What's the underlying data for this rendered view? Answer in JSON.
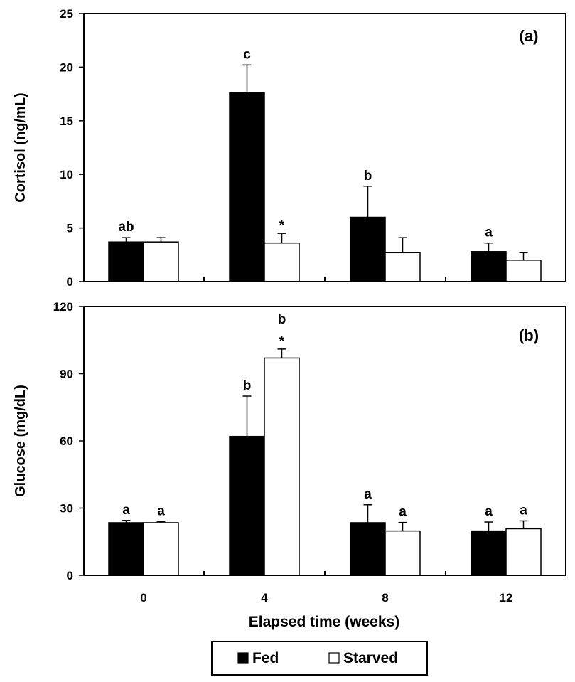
{
  "figure": {
    "xlabel": "Elapsed time (weeks)",
    "legend": {
      "position": "bottom-center",
      "items": [
        {
          "label": "Fed",
          "color": "#000000"
        },
        {
          "label": "Starved",
          "color": "#ffffff"
        }
      ]
    }
  },
  "chart_data": [
    {
      "type": "bar",
      "panel_label": "(a)",
      "categories": [
        "0",
        "4",
        "8",
        "12"
      ],
      "ylabel": "Cortisol (ng/mL)",
      "ylim": [
        0,
        25
      ],
      "yticks": [
        0,
        5,
        10,
        15,
        20,
        25
      ],
      "grid": false,
      "series": [
        {
          "name": "Fed",
          "color": "#000000",
          "values": [
            3.7,
            17.6,
            6.0,
            2.8
          ],
          "errors": [
            0.4,
            2.6,
            2.9,
            0.8
          ],
          "labels": [
            "ab",
            "c",
            "b",
            "a"
          ]
        },
        {
          "name": "Starved",
          "color": "#ffffff",
          "values": [
            3.7,
            3.6,
            2.7,
            2.0
          ],
          "errors": [
            0.4,
            0.9,
            1.4,
            0.7
          ],
          "labels": [
            "",
            "*",
            "",
            ""
          ]
        }
      ]
    },
    {
      "type": "bar",
      "panel_label": "(b)",
      "categories": [
        "0",
        "4",
        "8",
        "12"
      ],
      "xlabel": "Elapsed time (weeks)",
      "ylabel": "Glucose (mg/dL)",
      "ylim": [
        0,
        120
      ],
      "yticks": [
        0,
        30,
        60,
        90,
        120
      ],
      "grid": false,
      "series": [
        {
          "name": "Fed",
          "color": "#000000",
          "values": [
            23.5,
            62,
            23.5,
            19.8
          ],
          "errors": [
            1.0,
            18,
            8,
            4
          ],
          "labels": [
            "a",
            "b",
            "a",
            "a"
          ]
        },
        {
          "name": "Starved",
          "color": "#ffffff",
          "values": [
            23.5,
            97,
            19.8,
            20.8
          ],
          "errors": [
            0.5,
            4,
            3.8,
            3.5
          ],
          "labels": [
            "a",
            "b\n*",
            "a",
            "a"
          ]
        }
      ]
    }
  ]
}
